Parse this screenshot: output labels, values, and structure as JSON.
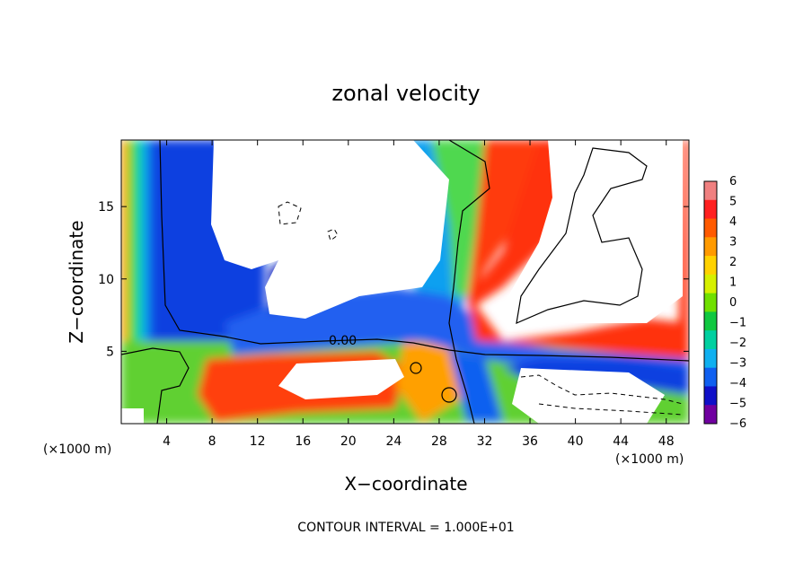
{
  "chart_data": {
    "type": "heatmap",
    "title": "zonal velocity",
    "xlabel": "X−coordinate",
    "ylabel": "Z−coordinate",
    "x_unit_label": "(×1000 m)",
    "y_unit_label": "(×1000 m)",
    "x_ticks": [
      4,
      8,
      12,
      16,
      20,
      24,
      28,
      32,
      36,
      40,
      44,
      48
    ],
    "y_ticks": [
      5,
      10,
      15
    ],
    "xlim": [
      0,
      50
    ],
    "ylim": [
      0,
      19.6
    ],
    "colorbar": {
      "ticks": [
        "6",
        "5",
        "4",
        "3",
        "2",
        "1",
        "0",
        "−1",
        "−2",
        "−3",
        "−4",
        "−5",
        "−6"
      ],
      "range": [
        -6,
        6
      ],
      "colors_top_to_bottom": [
        "#f08080",
        "#ff2020",
        "#ff5a00",
        "#ff9a00",
        "#ffd200",
        "#d6f000",
        "#70e000",
        "#10c840",
        "#00d0a0",
        "#10b0f0",
        "#1060f0",
        "#1010c8",
        "#7000a0"
      ]
    },
    "contour_label": "0.00",
    "footer": "CONTOUR INTERVAL = 1.000E+01"
  }
}
